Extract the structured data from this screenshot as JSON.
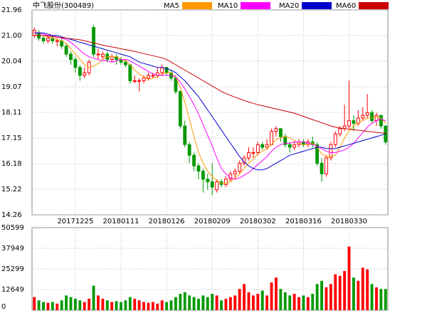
{
  "chart_data": {
    "type": "candlestick",
    "title": "中飞股份(300489)",
    "categories": [
      null,
      null,
      null,
      null,
      null,
      null,
      null,
      null,
      null,
      "20171225",
      null,
      null,
      null,
      null,
      null,
      null,
      null,
      null,
      null,
      "20180111",
      null,
      null,
      null,
      null,
      null,
      null,
      null,
      null,
      null,
      "20180126",
      null,
      null,
      null,
      null,
      null,
      null,
      null,
      null,
      null,
      "20180209",
      null,
      null,
      null,
      null,
      null,
      null,
      null,
      null,
      null,
      "20180302",
      null,
      null,
      null,
      null,
      null,
      null,
      null,
      null,
      null,
      "20180316",
      null,
      null,
      null,
      null,
      null,
      null,
      null,
      null,
      null,
      "20180330",
      null,
      null,
      null,
      null,
      null,
      null,
      null,
      null
    ],
    "open": [
      21.0,
      21.1,
      20.9,
      20.8,
      20.9,
      20.8,
      20.8,
      20.6,
      20.3,
      20.1,
      19.8,
      19.5,
      19.6,
      21.3,
      20.3,
      20.2,
      20.3,
      20.1,
      20.2,
      20.1,
      20.0,
      19.9,
      19.3,
      19.3,
      19.3,
      19.4,
      19.5,
      19.5,
      19.6,
      19.8,
      19.6,
      19.4,
      18.9,
      17.6,
      16.9,
      16.5,
      16.1,
      15.9,
      15.6,
      15.5,
      15.2,
      15.5,
      15.4,
      15.6,
      15.8,
      15.9,
      16.2,
      16.4,
      16.6,
      16.6,
      16.9,
      16.8,
      16.9,
      17.4,
      17.5,
      17.2,
      16.9,
      16.8,
      16.9,
      17.0,
      16.9,
      17.0,
      16.9,
      16.2,
      15.8,
      16.4,
      16.9,
      17.3,
      17.5,
      17.6,
      17.8,
      17.7,
      17.9,
      18.0,
      18.1,
      17.8,
      18.0,
      17.6
    ],
    "high": [
      21.3,
      21.2,
      21.0,
      21.0,
      21.0,
      20.9,
      20.9,
      20.7,
      20.4,
      20.2,
      19.9,
      19.8,
      20.1,
      21.4,
      20.5,
      20.4,
      20.4,
      20.3,
      20.3,
      20.2,
      20.1,
      19.9,
      19.5,
      19.4,
      19.5,
      19.6,
      19.6,
      19.8,
      19.9,
      19.8,
      19.7,
      19.5,
      18.9,
      17.8,
      17.0,
      16.6,
      16.2,
      16.0,
      15.8,
      16.2,
      15.6,
      15.6,
      15.7,
      15.9,
      16.0,
      16.3,
      16.5,
      16.8,
      16.8,
      17.0,
      17.0,
      17.1,
      17.5,
      17.6,
      17.5,
      17.3,
      17.0,
      17.0,
      17.1,
      17.1,
      17.1,
      17.2,
      17.0,
      16.4,
      16.5,
      17.0,
      17.4,
      17.6,
      18.4,
      19.3,
      18.0,
      18.2,
      18.3,
      18.8,
      18.2,
      18.1,
      18.0,
      17.6
    ],
    "low": [
      20.9,
      20.8,
      20.7,
      20.7,
      20.7,
      20.6,
      20.5,
      20.2,
      19.9,
      19.6,
      19.3,
      19.4,
      19.5,
      20.2,
      20.1,
      20.1,
      20.0,
      20.0,
      19.9,
      19.9,
      19.8,
      19.2,
      19.2,
      18.9,
      19.2,
      19.3,
      19.4,
      19.4,
      19.5,
      19.5,
      19.3,
      18.8,
      17.5,
      16.8,
      16.2,
      15.9,
      15.6,
      15.1,
      15.2,
      15.0,
      15.1,
      15.3,
      15.3,
      15.5,
      15.6,
      15.8,
      16.1,
      16.3,
      16.4,
      16.5,
      16.7,
      16.7,
      16.9,
      17.2,
      17.0,
      16.8,
      16.6,
      16.7,
      16.8,
      16.8,
      16.8,
      16.8,
      16.1,
      15.5,
      15.7,
      16.3,
      16.8,
      17.2,
      17.4,
      17.5,
      17.4,
      17.6,
      17.8,
      17.9,
      17.7,
      17.6,
      17.5,
      16.9
    ],
    "close": [
      21.2,
      20.9,
      20.8,
      20.9,
      20.8,
      20.8,
      20.6,
      20.3,
      20.1,
      19.8,
      19.5,
      19.6,
      20.0,
      20.3,
      20.3,
      20.3,
      20.1,
      20.2,
      20.1,
      20.0,
      19.9,
      19.3,
      19.3,
      19.3,
      19.4,
      19.5,
      19.5,
      19.6,
      19.8,
      19.6,
      19.4,
      18.9,
      17.6,
      16.9,
      16.5,
      16.1,
      15.9,
      15.6,
      15.5,
      15.3,
      15.5,
      15.4,
      15.6,
      15.8,
      15.9,
      16.2,
      16.4,
      16.6,
      16.6,
      16.9,
      16.8,
      16.9,
      17.4,
      17.5,
      17.2,
      16.9,
      16.8,
      16.9,
      17.0,
      16.9,
      17.0,
      16.9,
      16.2,
      15.8,
      16.4,
      16.9,
      17.3,
      17.5,
      17.6,
      17.8,
      17.7,
      17.9,
      18.0,
      18.1,
      17.8,
      18.0,
      17.6,
      17.0
    ],
    "volume": [
      8000,
      6000,
      5000,
      4500,
      5000,
      4000,
      6000,
      9000,
      8000,
      7000,
      6000,
      5000,
      7000,
      15000,
      9000,
      7000,
      6000,
      5000,
      5500,
      5000,
      6000,
      8000,
      7000,
      6000,
      5000,
      4500,
      5000,
      4000,
      6000,
      5000,
      6000,
      8000,
      10000,
      11000,
      9000,
      8000,
      7000,
      9000,
      8000,
      10000,
      9000,
      6000,
      7000,
      8000,
      9000,
      13000,
      16000,
      11000,
      9000,
      10000,
      12000,
      9000,
      17000,
      20000,
      13000,
      11000,
      9000,
      10000,
      8000,
      9000,
      8000,
      10000,
      16000,
      18000,
      14000,
      16000,
      22000,
      21000,
      24000,
      39000,
      20000,
      18000,
      26000,
      25000,
      16000,
      14000,
      13000,
      13000
    ],
    "series": [
      {
        "name": "MA5",
        "color": "#ff9900",
        "values": [
          21.0,
          21.0,
          21.0,
          20.95,
          20.9,
          20.85,
          20.8,
          20.7,
          20.5,
          20.3,
          20.1,
          19.9,
          19.8,
          19.85,
          19.95,
          20.1,
          20.2,
          20.2,
          20.2,
          20.1,
          20.05,
          19.9,
          19.7,
          19.55,
          19.45,
          19.35,
          19.4,
          19.45,
          19.55,
          19.6,
          19.6,
          19.45,
          19.05,
          18.5,
          17.85,
          17.2,
          16.6,
          16.2,
          15.9,
          15.7,
          15.55,
          15.45,
          15.45,
          15.5,
          15.65,
          15.8,
          16.0,
          16.2,
          16.35,
          16.55,
          16.65,
          16.75,
          16.9,
          17.1,
          17.15,
          17.2,
          17.15,
          17.05,
          16.95,
          16.9,
          16.9,
          16.95,
          16.8,
          16.55,
          16.45,
          16.45,
          16.5,
          16.8,
          17.15,
          17.4,
          17.6,
          17.7,
          17.8,
          17.9,
          17.9,
          17.95,
          17.9,
          17.7
        ]
      },
      {
        "name": "MA10",
        "color": "#ff00ff",
        "values": [
          21.1,
          21.1,
          21.05,
          21.0,
          21.0,
          20.95,
          20.9,
          20.85,
          20.75,
          20.6,
          20.45,
          20.3,
          20.2,
          20.15,
          20.1,
          20.05,
          20.05,
          20.0,
          20.05,
          20.1,
          20.1,
          20.05,
          19.95,
          19.85,
          19.75,
          19.65,
          19.55,
          19.5,
          19.5,
          19.5,
          19.5,
          19.45,
          19.25,
          19.0,
          18.7,
          18.4,
          18.05,
          17.65,
          17.25,
          16.85,
          16.4,
          16.0,
          15.8,
          15.65,
          15.6,
          15.65,
          15.75,
          15.85,
          16.0,
          16.15,
          16.3,
          16.45,
          16.65,
          16.8,
          16.9,
          16.95,
          16.95,
          17.0,
          17.0,
          17.0,
          16.95,
          16.9,
          16.85,
          16.75,
          16.65,
          16.6,
          16.6,
          16.65,
          16.7,
          16.8,
          16.95,
          17.15,
          17.35,
          17.55,
          17.7,
          17.8,
          17.85,
          17.8
        ]
      },
      {
        "name": "MA20",
        "color": "#0000cc",
        "values": [
          21.1,
          21.1,
          21.1,
          21.05,
          21.0,
          21.0,
          20.95,
          20.9,
          20.85,
          20.8,
          20.75,
          20.7,
          20.65,
          20.6,
          20.55,
          20.5,
          20.45,
          20.4,
          20.35,
          20.3,
          20.25,
          20.2,
          20.1,
          20.0,
          19.95,
          19.9,
          19.85,
          19.8,
          19.8,
          19.75,
          19.7,
          19.6,
          19.45,
          19.3,
          19.1,
          18.9,
          18.7,
          18.45,
          18.2,
          17.95,
          17.7,
          17.45,
          17.2,
          16.95,
          16.7,
          16.45,
          16.25,
          16.1,
          16.0,
          15.95,
          15.95,
          16.0,
          16.1,
          16.2,
          16.3,
          16.4,
          16.5,
          16.55,
          16.6,
          16.65,
          16.7,
          16.75,
          16.8,
          16.8,
          16.75,
          16.75,
          16.75,
          16.8,
          16.85,
          16.9,
          16.95,
          17.0,
          17.05,
          17.1,
          17.15,
          17.2,
          17.25,
          17.3
        ]
      },
      {
        "name": "MA60",
        "color": "#cc0000",
        "values": [
          21.0,
          21.0,
          21.0,
          20.98,
          20.96,
          20.94,
          20.92,
          20.9,
          20.88,
          20.86,
          20.84,
          20.8,
          20.76,
          20.72,
          20.68,
          20.64,
          20.6,
          20.57,
          20.54,
          20.5,
          20.47,
          20.44,
          20.4,
          20.36,
          20.32,
          20.28,
          20.24,
          20.2,
          20.16,
          20.1,
          20.0,
          19.9,
          19.8,
          19.7,
          19.6,
          19.5,
          19.4,
          19.3,
          19.2,
          19.1,
          19.0,
          18.9,
          18.82,
          18.75,
          18.68,
          18.62,
          18.56,
          18.5,
          18.45,
          18.4,
          18.36,
          18.32,
          18.28,
          18.24,
          18.2,
          18.16,
          18.12,
          18.08,
          18.02,
          17.96,
          17.9,
          17.84,
          17.78,
          17.72,
          17.66,
          17.6,
          17.56,
          17.52,
          17.5,
          17.48,
          17.46,
          17.44,
          17.42,
          17.4,
          17.38,
          17.36,
          17.34,
          17.32
        ]
      }
    ],
    "up_color": "#ff0000",
    "down_color": "#009900",
    "ylim": [
      14.26,
      21.96
    ],
    "yticks": [
      21.96,
      {
        "value": 21,
        "label": "21.00"
      },
      20.04,
      19.07,
      18.11,
      17.15,
      16.18,
      15.22,
      14.26
    ],
    "volume_lim": [
      0,
      50599
    ],
    "volume_ticks": [
      50599,
      37949,
      25299,
      12649,
      0
    ],
    "grid": true
  }
}
